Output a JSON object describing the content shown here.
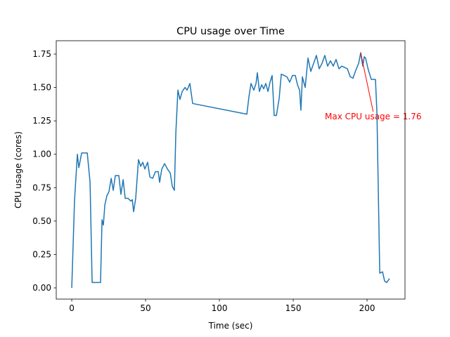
{
  "chart_data": {
    "type": "line",
    "title": "CPU usage over Time",
    "x_label": "Time (sec)",
    "y_label": "CPU usage (cores)",
    "x": [
      0,
      1.9,
      3.8,
      4.8,
      6.7,
      10.5,
      12.4,
      13.8,
      15.2,
      16.7,
      18.1,
      19.5,
      20.5,
      21.4,
      22.4,
      23.8,
      25.2,
      26.7,
      28.1,
      29.5,
      31.9,
      33.3,
      34.8,
      36.2,
      38.1,
      40,
      41,
      41.9,
      43.3,
      45.2,
      46.7,
      48.1,
      49.5,
      51.4,
      52.9,
      54.8,
      56.7,
      58.6,
      59.5,
      61,
      62.9,
      64.8,
      66.7,
      68.1,
      69.5,
      70.5,
      71.9,
      73.3,
      74.8,
      76.7,
      78.1,
      80,
      81.9,
      118.6,
      120,
      121.4,
      123.3,
      124.8,
      125.7,
      127.1,
      128.6,
      130,
      131.4,
      132.9,
      134.3,
      135.7,
      137.1,
      138.6,
      140.5,
      141.9,
      143.8,
      145.7,
      147.6,
      149.5,
      151.4,
      152.9,
      154.3,
      155.2,
      156.2,
      158.1,
      160,
      161.9,
      163.8,
      165.7,
      167.6,
      169.5,
      171.4,
      173.3,
      175.2,
      177.1,
      179,
      181,
      182.9,
      184.8,
      186.7,
      188.6,
      190.5,
      192.4,
      194.3,
      195.7,
      197.1,
      198.1,
      199,
      200.9,
      202.9,
      205.7,
      206.7,
      208.6,
      210.5,
      211.9,
      213.3,
      215.2
    ],
    "series": [
      {
        "name": "CPU usage",
        "color": "#1f77b4",
        "values": [
          0,
          0.66,
          1.0,
          0.9,
          1.01,
          1.01,
          0.79,
          0.04,
          0.04,
          0.04,
          0.04,
          0.04,
          0.51,
          0.47,
          0.62,
          0.69,
          0.72,
          0.82,
          0.73,
          0.84,
          0.84,
          0.7,
          0.81,
          0.67,
          0.67,
          0.65,
          0.66,
          0.57,
          0.67,
          0.96,
          0.91,
          0.94,
          0.89,
          0.94,
          0.83,
          0.82,
          0.87,
          0.87,
          0.79,
          0.89,
          0.93,
          0.89,
          0.86,
          0.76,
          0.73,
          1.16,
          1.48,
          1.41,
          1.47,
          1.5,
          1.48,
          1.53,
          1.38,
          1.3,
          1.43,
          1.53,
          1.48,
          1.53,
          1.61,
          1.47,
          1.52,
          1.49,
          1.53,
          1.47,
          1.54,
          1.59,
          1.29,
          1.29,
          1.42,
          1.6,
          1.59,
          1.58,
          1.54,
          1.59,
          1.59,
          1.52,
          1.48,
          1.33,
          1.58,
          1.5,
          1.72,
          1.62,
          1.68,
          1.74,
          1.64,
          1.68,
          1.74,
          1.66,
          1.7,
          1.66,
          1.71,
          1.64,
          1.66,
          1.65,
          1.64,
          1.58,
          1.57,
          1.63,
          1.68,
          1.76,
          1.66,
          1.73,
          1.72,
          1.63,
          1.56,
          1.56,
          1.31,
          0.11,
          0.12,
          0.05,
          0.04,
          0.07
        ]
      }
    ],
    "xlim": [
      -10.5,
      225.7
    ],
    "ylim": [
      -0.084,
      1.85
    ],
    "xticks": [
      0,
      50,
      100,
      150,
      200
    ],
    "yticks": [
      {
        "value": 0,
        "label": "0.00"
      },
      {
        "value": 0.25,
        "label": "0.25"
      },
      {
        "value": 0.5,
        "label": "0.50"
      },
      {
        "value": 0.75,
        "label": "0.75"
      },
      {
        "value": 1,
        "label": "1.00"
      },
      {
        "value": 1.25,
        "label": "1.25"
      },
      {
        "value": 1.5,
        "label": "1.50"
      },
      {
        "value": 1.75,
        "label": "1.75"
      }
    ],
    "annotations": [
      {
        "text": "Max CPU usage = 1.76",
        "xy": [
          195.7,
          1.76
        ],
        "color": "red"
      }
    ]
  }
}
